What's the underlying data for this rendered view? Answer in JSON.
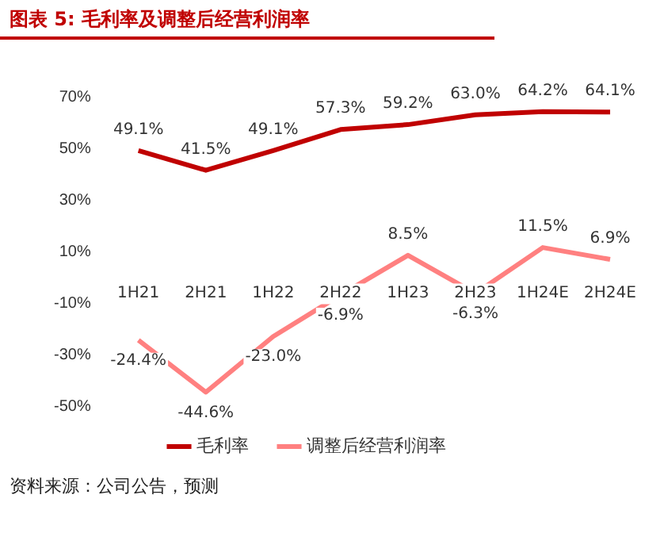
{
  "chart_data": {
    "type": "line",
    "title": "图表 5: 毛利率及调整后经营利润率",
    "categories": [
      "1H21",
      "2H21",
      "1H22",
      "2H22",
      "1H23",
      "2H23",
      "1H24E",
      "2H24E"
    ],
    "series": [
      {
        "name": "毛利率",
        "color": "#c00000",
        "values": [
          49.1,
          41.5,
          49.1,
          57.3,
          59.2,
          63.0,
          64.2,
          64.1
        ],
        "value_labels": [
          "49.1%",
          "41.5%",
          "49.1%",
          "57.3%",
          "59.2%",
          "63.0%",
          "64.2%",
          "64.1%"
        ]
      },
      {
        "name": "调整后经营利润率",
        "color": "#ff8080",
        "values": [
          -24.4,
          -44.6,
          -23.0,
          -6.9,
          8.5,
          -6.3,
          11.5,
          6.9
        ],
        "value_labels": [
          "-24.4%",
          "-44.6%",
          "-23.0%",
          "-6.9%",
          "8.5%",
          "-6.3%",
          "11.5%",
          "6.9%"
        ]
      }
    ],
    "ylim": [
      -50,
      70
    ],
    "yticks": [
      {
        "value": -50,
        "label": "-50%"
      },
      {
        "value": -30,
        "label": "-30%"
      },
      {
        "value": -10,
        "label": "-10%"
      },
      {
        "value": 10,
        "label": "10%"
      },
      {
        "value": 30,
        "label": "30%"
      },
      {
        "value": 50,
        "label": "50%"
      },
      {
        "value": 70,
        "label": "70%"
      }
    ],
    "grid": false,
    "legend": "bottom",
    "marker": "none",
    "line_style": "solid",
    "annotations": [
      "资料来源：公司公告，预测"
    ]
  }
}
